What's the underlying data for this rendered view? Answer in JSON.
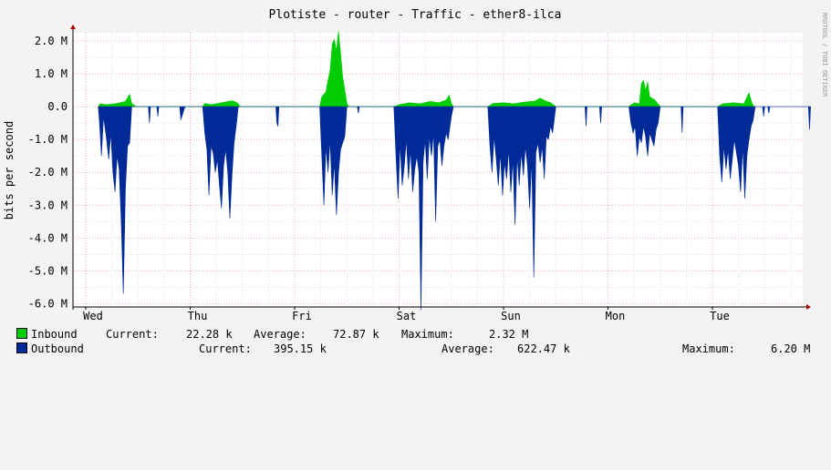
{
  "chart_data": {
    "type": "area",
    "title": "Plotiste - router - Traffic - ether8-ilca",
    "ylabel": "bits per second",
    "watermark": "RRDTOOL / TOBI OETIKER",
    "ylim": [
      -6100000,
      2250000
    ],
    "y_ticks": [
      {
        "value": 2000000,
        "label": "2.0 M"
      },
      {
        "value": 1000000,
        "label": "1.0 M"
      },
      {
        "value": 0,
        "label": "0.0"
      },
      {
        "value": -1000000,
        "label": "-1.0 M"
      },
      {
        "value": -2000000,
        "label": "-2.0 M"
      },
      {
        "value": -3000000,
        "label": "-3.0 M"
      },
      {
        "value": -4000000,
        "label": "-4.0 M"
      },
      {
        "value": -5000000,
        "label": "-5.0 M"
      },
      {
        "value": -6000000,
        "label": "-6.0 M"
      }
    ],
    "x_unit": "day",
    "xlim": [
      0,
      7
    ],
    "x_ticks": [
      {
        "value": 0,
        "label": "Wed"
      },
      {
        "value": 1,
        "label": "Thu"
      },
      {
        "value": 2,
        "label": "Fri"
      },
      {
        "value": 3,
        "label": "Sat"
      },
      {
        "value": 4,
        "label": "Sun"
      },
      {
        "value": 5,
        "label": "Mon"
      },
      {
        "value": 6,
        "label": "Tue"
      }
    ],
    "grid": true,
    "series": [
      {
        "name": "Inbound",
        "color": "#00cc00",
        "current": "22.28 k",
        "average": "72.87 k",
        "maximum": "2.32 M",
        "points": [
          [
            0.12,
            0
          ],
          [
            0.14,
            90000
          ],
          [
            0.2,
            60000
          ],
          [
            0.3,
            100000
          ],
          [
            0.38,
            160000
          ],
          [
            0.42,
            380000
          ],
          [
            0.44,
            100000
          ],
          [
            0.48,
            0
          ],
          [
            1.12,
            0
          ],
          [
            1.14,
            100000
          ],
          [
            1.2,
            60000
          ],
          [
            1.3,
            120000
          ],
          [
            1.4,
            180000
          ],
          [
            1.45,
            120000
          ],
          [
            1.48,
            0
          ],
          [
            2.24,
            0
          ],
          [
            2.26,
            300000
          ],
          [
            2.3,
            450000
          ],
          [
            2.32,
            800000
          ],
          [
            2.34,
            1100000
          ],
          [
            2.36,
            1900000
          ],
          [
            2.38,
            2050000
          ],
          [
            2.4,
            1700000
          ],
          [
            2.42,
            2300000
          ],
          [
            2.44,
            1600000
          ],
          [
            2.46,
            900000
          ],
          [
            2.48,
            500000
          ],
          [
            2.5,
            100000
          ],
          [
            2.52,
            0
          ],
          [
            2.95,
            0
          ],
          [
            3.0,
            60000
          ],
          [
            3.1,
            120000
          ],
          [
            3.2,
            90000
          ],
          [
            3.3,
            160000
          ],
          [
            3.38,
            120000
          ],
          [
            3.45,
            200000
          ],
          [
            3.48,
            350000
          ],
          [
            3.5,
            100000
          ],
          [
            3.52,
            0
          ],
          [
            3.85,
            0
          ],
          [
            3.9,
            100000
          ],
          [
            4.0,
            120000
          ],
          [
            4.1,
            90000
          ],
          [
            4.2,
            140000
          ],
          [
            4.3,
            170000
          ],
          [
            4.35,
            260000
          ],
          [
            4.4,
            180000
          ],
          [
            4.45,
            120000
          ],
          [
            4.5,
            0
          ],
          [
            5.2,
            0
          ],
          [
            5.25,
            120000
          ],
          [
            5.3,
            90000
          ],
          [
            5.32,
            700000
          ],
          [
            5.34,
            800000
          ],
          [
            5.36,
            500000
          ],
          [
            5.38,
            750000
          ],
          [
            5.4,
            300000
          ],
          [
            5.45,
            200000
          ],
          [
            5.5,
            0
          ],
          [
            6.05,
            0
          ],
          [
            6.1,
            90000
          ],
          [
            6.2,
            120000
          ],
          [
            6.3,
            90000
          ],
          [
            6.35,
            420000
          ],
          [
            6.38,
            100000
          ],
          [
            6.4,
            0
          ]
        ]
      },
      {
        "name": "Outbound",
        "color": "#002a97",
        "current": "395.15 k",
        "average": "622.47 k",
        "maximum": "6.20 M",
        "points": [
          [
            0.12,
            0
          ],
          [
            0.13,
            -400000
          ],
          [
            0.15,
            -1500000
          ],
          [
            0.17,
            -300000
          ],
          [
            0.2,
            -1000000
          ],
          [
            0.22,
            -1600000
          ],
          [
            0.24,
            -800000
          ],
          [
            0.26,
            -2000000
          ],
          [
            0.28,
            -2600000
          ],
          [
            0.3,
            -1500000
          ],
          [
            0.32,
            -1900000
          ],
          [
            0.34,
            -3500000
          ],
          [
            0.36,
            -5700000
          ],
          [
            0.38,
            -2500000
          ],
          [
            0.4,
            -1200000
          ],
          [
            0.42,
            -1100000
          ],
          [
            0.44,
            0
          ],
          [
            0.6,
            0
          ],
          [
            0.61,
            -500000
          ],
          [
            0.62,
            0
          ],
          [
            0.68,
            0
          ],
          [
            0.69,
            -300000
          ],
          [
            0.7,
            0
          ],
          [
            0.9,
            0
          ],
          [
            0.91,
            -400000
          ],
          [
            0.93,
            -200000
          ],
          [
            0.95,
            0
          ],
          [
            1.12,
            0
          ],
          [
            1.14,
            -800000
          ],
          [
            1.16,
            -1300000
          ],
          [
            1.18,
            -2700000
          ],
          [
            1.2,
            -1200000
          ],
          [
            1.22,
            -1400000
          ],
          [
            1.24,
            -2000000
          ],
          [
            1.26,
            -1600000
          ],
          [
            1.28,
            -2400000
          ],
          [
            1.3,
            -3100000
          ],
          [
            1.32,
            -1800000
          ],
          [
            1.34,
            -1300000
          ],
          [
            1.36,
            -2000000
          ],
          [
            1.38,
            -3400000
          ],
          [
            1.4,
            -2100000
          ],
          [
            1.42,
            -1100000
          ],
          [
            1.44,
            -600000
          ],
          [
            1.46,
            0
          ],
          [
            1.82,
            0
          ],
          [
            1.83,
            -500000
          ],
          [
            1.84,
            -600000
          ],
          [
            1.85,
            0
          ],
          [
            2.24,
            0
          ],
          [
            2.26,
            -1500000
          ],
          [
            2.28,
            -3000000
          ],
          [
            2.3,
            -1200000
          ],
          [
            2.32,
            -2000000
          ],
          [
            2.34,
            -1000000
          ],
          [
            2.36,
            -2700000
          ],
          [
            2.38,
            -1700000
          ],
          [
            2.4,
            -3300000
          ],
          [
            2.42,
            -2000000
          ],
          [
            2.44,
            -1300000
          ],
          [
            2.46,
            -1100000
          ],
          [
            2.48,
            -900000
          ],
          [
            2.5,
            0
          ],
          [
            2.6,
            0
          ],
          [
            2.61,
            -200000
          ],
          [
            2.62,
            0
          ],
          [
            2.95,
            0
          ],
          [
            2.97,
            -1500000
          ],
          [
            2.99,
            -2800000
          ],
          [
            3.01,
            -1100000
          ],
          [
            3.03,
            -2400000
          ],
          [
            3.05,
            -1800000
          ],
          [
            3.07,
            -1000000
          ],
          [
            3.09,
            -2200000
          ],
          [
            3.11,
            -1300000
          ],
          [
            3.13,
            -2600000
          ],
          [
            3.15,
            -1900000
          ],
          [
            3.17,
            -1500000
          ],
          [
            3.19,
            -2000000
          ],
          [
            3.21,
            -6200000
          ],
          [
            3.23,
            -1700000
          ],
          [
            3.25,
            -1000000
          ],
          [
            3.27,
            -2200000
          ],
          [
            3.29,
            -900000
          ],
          [
            3.31,
            -1500000
          ],
          [
            3.33,
            -800000
          ],
          [
            3.35,
            -3500000
          ],
          [
            3.37,
            -1200000
          ],
          [
            3.39,
            -1000000
          ],
          [
            3.41,
            -1800000
          ],
          [
            3.43,
            -1200000
          ],
          [
            3.45,
            -800000
          ],
          [
            3.47,
            -1000000
          ],
          [
            3.5,
            -300000
          ],
          [
            3.52,
            0
          ],
          [
            3.85,
            0
          ],
          [
            3.87,
            -1200000
          ],
          [
            3.89,
            -2000000
          ],
          [
            3.91,
            -900000
          ],
          [
            3.93,
            -1600000
          ],
          [
            3.95,
            -2400000
          ],
          [
            3.97,
            -1400000
          ],
          [
            3.99,
            -2700000
          ],
          [
            4.01,
            -1700000
          ],
          [
            4.03,
            -2200000
          ],
          [
            4.05,
            -1300000
          ],
          [
            4.07,
            -2600000
          ],
          [
            4.09,
            -1600000
          ],
          [
            4.11,
            -3600000
          ],
          [
            4.13,
            -1500000
          ],
          [
            4.15,
            -2400000
          ],
          [
            4.17,
            -1400000
          ],
          [
            4.19,
            -2100000
          ],
          [
            4.21,
            -1200000
          ],
          [
            4.23,
            -1800000
          ],
          [
            4.25,
            -3100000
          ],
          [
            4.27,
            -1600000
          ],
          [
            4.29,
            -5200000
          ],
          [
            4.31,
            -1400000
          ],
          [
            4.33,
            -1100000
          ],
          [
            4.35,
            -1700000
          ],
          [
            4.37,
            -1200000
          ],
          [
            4.39,
            -2200000
          ],
          [
            4.41,
            -900000
          ],
          [
            4.43,
            -1000000
          ],
          [
            4.45,
            -600000
          ],
          [
            4.47,
            -800000
          ],
          [
            4.5,
            0
          ],
          [
            4.78,
            0
          ],
          [
            4.79,
            -600000
          ],
          [
            4.8,
            0
          ],
          [
            4.92,
            0
          ],
          [
            4.93,
            -500000
          ],
          [
            4.94,
            0
          ],
          [
            5.2,
            0
          ],
          [
            5.22,
            -500000
          ],
          [
            5.24,
            -800000
          ],
          [
            5.26,
            -600000
          ],
          [
            5.28,
            -1500000
          ],
          [
            5.3,
            -900000
          ],
          [
            5.32,
            -1100000
          ],
          [
            5.34,
            -600000
          ],
          [
            5.36,
            -900000
          ],
          [
            5.38,
            -1500000
          ],
          [
            5.4,
            -800000
          ],
          [
            5.42,
            -1000000
          ],
          [
            5.44,
            -1200000
          ],
          [
            5.46,
            -700000
          ],
          [
            5.48,
            -500000
          ],
          [
            5.5,
            0
          ],
          [
            5.7,
            0
          ],
          [
            5.71,
            -800000
          ],
          [
            5.72,
            0
          ],
          [
            6.05,
            0
          ],
          [
            6.07,
            -1500000
          ],
          [
            6.09,
            -2300000
          ],
          [
            6.11,
            -1200000
          ],
          [
            6.13,
            -1900000
          ],
          [
            6.15,
            -1300000
          ],
          [
            6.17,
            -2200000
          ],
          [
            6.19,
            -1600000
          ],
          [
            6.21,
            -1000000
          ],
          [
            6.23,
            -1400000
          ],
          [
            6.25,
            -1800000
          ],
          [
            6.27,
            -2600000
          ],
          [
            6.29,
            -1200000
          ],
          [
            6.31,
            -2800000
          ],
          [
            6.33,
            -1500000
          ],
          [
            6.35,
            -1000000
          ],
          [
            6.37,
            -600000
          ],
          [
            6.39,
            -400000
          ],
          [
            6.41,
            0
          ],
          [
            6.48,
            0
          ],
          [
            6.49,
            -300000
          ],
          [
            6.5,
            0
          ],
          [
            6.53,
            0
          ],
          [
            6.54,
            -200000
          ],
          [
            6.55,
            0
          ],
          [
            6.92,
            0
          ],
          [
            6.93,
            -700000
          ],
          [
            6.94,
            0
          ]
        ]
      }
    ]
  },
  "legend": {
    "inbound": {
      "name": "Inbound",
      "current_label": "Current:",
      "current": "22.28 k",
      "average_label": "Average:",
      "average": "72.87 k",
      "maximum_label": "Maximum:",
      "maximum": "2.32 M"
    },
    "outbound": {
      "name": "Outbound",
      "current_label": "Current:",
      "current": "395.15 k",
      "average_label": "Average:",
      "average": "622.47 k",
      "maximum_label": "Maximum:",
      "maximum": "6.20 M"
    }
  }
}
